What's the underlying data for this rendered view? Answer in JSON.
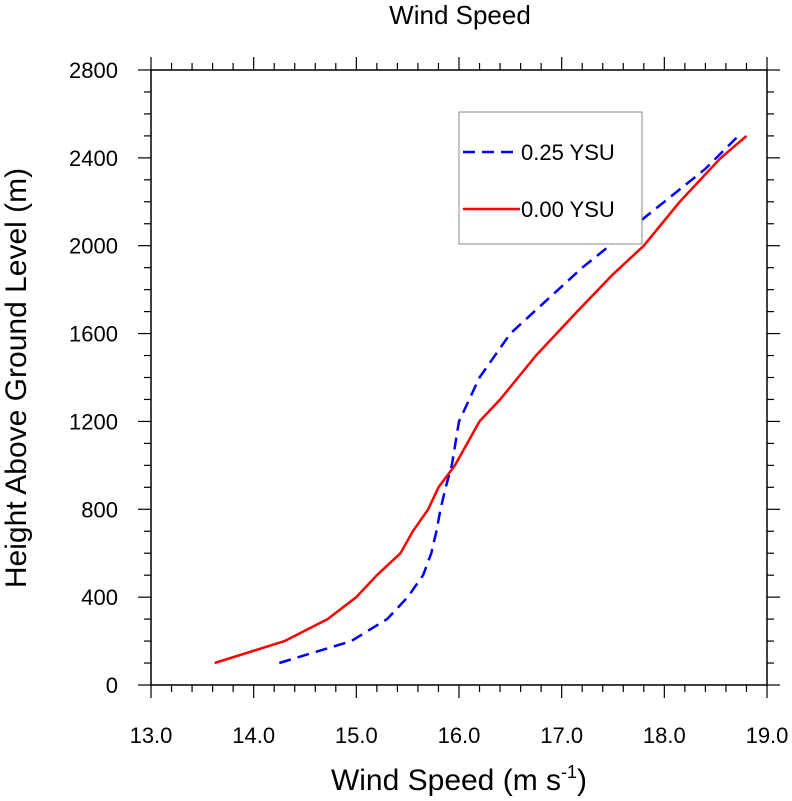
{
  "chart_data": {
    "type": "line",
    "title": "Wind Speed",
    "xlabel": "Wind Speed (m s",
    "xlabel_sup": "-1",
    "xlabel_close": ")",
    "ylabel": "Height Above Ground Level (m)",
    "xlim": [
      13.0,
      19.0
    ],
    "ylim": [
      0,
      2800
    ],
    "xticks": [
      "13.0",
      "14.0",
      "15.0",
      "16.0",
      "17.0",
      "18.0",
      "19.0"
    ],
    "yticks": [
      "0",
      "400",
      "800",
      "1200",
      "1600",
      "2000",
      "2400",
      "2800"
    ],
    "grid": false,
    "legend_position": "top-right",
    "series": [
      {
        "name": "0.25 YSU",
        "color": "#0000ff",
        "style": "dashed",
        "points": [
          [
            14.25,
            100
          ],
          [
            14.95,
            200
          ],
          [
            15.3,
            300
          ],
          [
            15.5,
            400
          ],
          [
            15.65,
            500
          ],
          [
            15.73,
            600
          ],
          [
            15.78,
            700
          ],
          [
            15.82,
            800
          ],
          [
            15.87,
            900
          ],
          [
            15.93,
            1000
          ],
          [
            16.0,
            1200
          ],
          [
            16.2,
            1400
          ],
          [
            16.5,
            1600
          ],
          [
            16.85,
            1750
          ],
          [
            17.2,
            1900
          ],
          [
            17.6,
            2050
          ],
          [
            18.0,
            2200
          ],
          [
            18.4,
            2350
          ],
          [
            18.72,
            2500
          ]
        ]
      },
      {
        "name": "0.00 YSU",
        "color": "#ff0000",
        "style": "solid",
        "points": [
          [
            13.62,
            100
          ],
          [
            14.3,
            200
          ],
          [
            14.72,
            300
          ],
          [
            15.0,
            400
          ],
          [
            15.2,
            500
          ],
          [
            15.43,
            600
          ],
          [
            15.55,
            700
          ],
          [
            15.7,
            800
          ],
          [
            15.8,
            900
          ],
          [
            15.96,
            1000
          ],
          [
            16.2,
            1200
          ],
          [
            16.4,
            1300
          ],
          [
            16.75,
            1500
          ],
          [
            17.15,
            1700
          ],
          [
            17.5,
            1870
          ],
          [
            17.8,
            2000
          ],
          [
            18.15,
            2200
          ],
          [
            18.55,
            2400
          ],
          [
            18.8,
            2500
          ]
        ]
      }
    ]
  }
}
